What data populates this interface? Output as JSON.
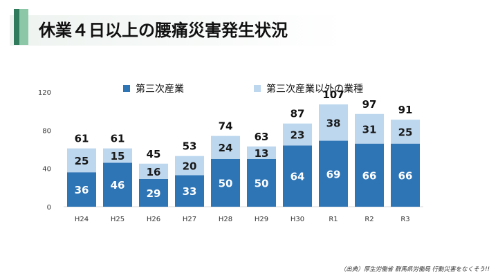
{
  "title": "休業４日以上の腰痛災害発生状況",
  "source": "（出典）厚生労働省 群馬県労働局 行動災害をなくそう!!",
  "colors": {
    "tertiary": "#2e75b6",
    "other": "#bdd7ee",
    "accent_dark": "#2f7b5c",
    "accent_light": "#8cc7a8"
  },
  "chart_data": {
    "type": "bar",
    "stacked": true,
    "categories": [
      "H24",
      "H25",
      "H26",
      "H27",
      "H28",
      "H29",
      "H30",
      "R1",
      "R2",
      "R3"
    ],
    "series": [
      {
        "name": "第三次産業",
        "values": [
          36,
          46,
          29,
          33,
          50,
          50,
          64,
          69,
          66,
          66
        ]
      },
      {
        "name": "第三次産業以外の業種",
        "values": [
          25,
          15,
          16,
          20,
          24,
          13,
          23,
          38,
          31,
          25
        ]
      }
    ],
    "totals": [
      61,
      61,
      45,
      53,
      74,
      63,
      87,
      107,
      97,
      91
    ],
    "yticks": [
      0,
      40,
      80,
      120
    ],
    "ylim": [
      0,
      120
    ],
    "grid": false,
    "legend": "top"
  }
}
